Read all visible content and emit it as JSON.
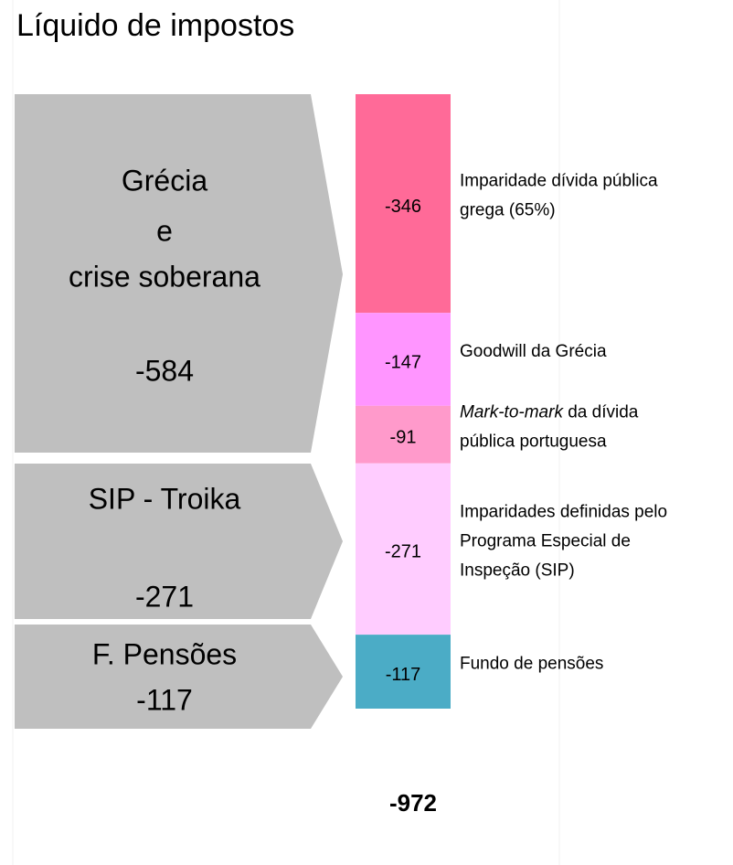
{
  "title": "Líquido de impostos",
  "groups": [
    {
      "label_lines": [
        "Grécia",
        "e",
        "crise soberana"
      ],
      "total": -584
    },
    {
      "label_lines": [
        "SIP - Troika"
      ],
      "total": -271
    },
    {
      "label_lines": [
        "F. Pensões"
      ],
      "total": -117
    }
  ],
  "segments": [
    {
      "value": -346,
      "color": "#ff6a98",
      "description": [
        {
          "text": "Imparidade dívida pública"
        },
        {
          "text": "grega (65%)"
        }
      ]
    },
    {
      "value": -147,
      "color": "#ff95ff",
      "description": [
        {
          "text": "Goodwill da Grécia"
        }
      ]
    },
    {
      "value": -91,
      "color": "#ff9acb",
      "description": [
        {
          "emphasis": "Mark-to-mark",
          "text": " da dívida"
        },
        {
          "text": "pública portuguesa"
        }
      ]
    },
    {
      "value": -271,
      "color": "#ffccff",
      "description": [
        {
          "text": "Imparidades definidas pelo"
        },
        {
          "text": "Programa Especial de"
        },
        {
          "text": "Inspeção (SIP)"
        }
      ]
    },
    {
      "value": -117,
      "color": "#4bacc6",
      "description": [
        {
          "text": "Fundo de pensões"
        }
      ]
    }
  ],
  "total": -972
}
